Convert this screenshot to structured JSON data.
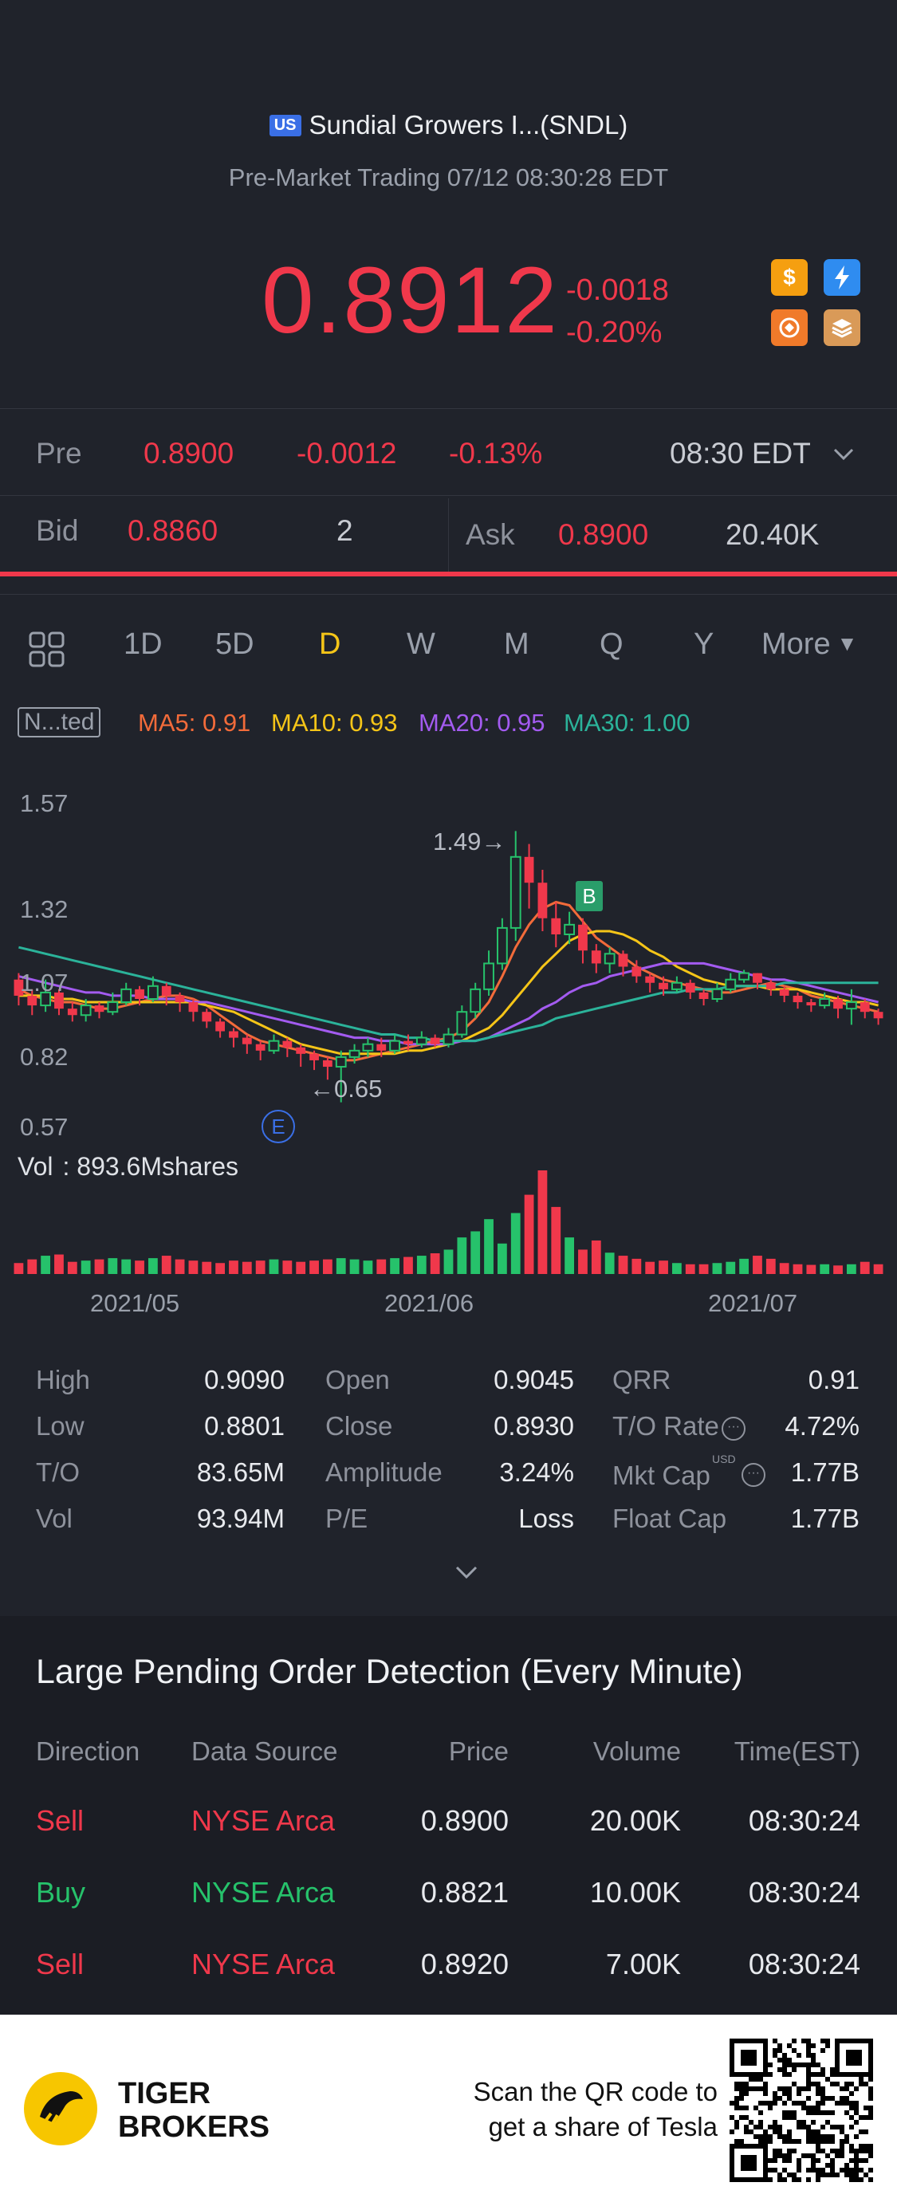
{
  "header": {
    "market_flag": "US",
    "title": "Sundial Growers I...(SNDL)",
    "subtitle": "Pre-Market Trading 07/12 08:30:28 EDT"
  },
  "quote": {
    "price": "0.8912",
    "change": "-0.0018",
    "change_pct": "-0.20%",
    "badges": [
      "dollar-icon",
      "lightning-icon",
      "share-icon",
      "stack-icon"
    ]
  },
  "pre": {
    "label": "Pre",
    "price": "0.8900",
    "change": "-0.0012",
    "change_pct": "-0.13%",
    "time": "08:30 EDT"
  },
  "bidask": {
    "bid_label": "Bid",
    "bid_price": "0.8860",
    "bid_size": "2",
    "ask_label": "Ask",
    "ask_price": "0.8900",
    "ask_size": "20.40K"
  },
  "tabs": {
    "items": [
      "1D",
      "5D",
      "D",
      "W",
      "M",
      "Q",
      "Y"
    ],
    "more": "More",
    "active": "D"
  },
  "ma": {
    "indicator": "N...ted",
    "ma5": "MA5: 0.91",
    "ma10": "MA10: 0.93",
    "ma20": "MA20: 0.95",
    "ma30": "MA30: 1.00",
    "colors": {
      "ma5": "#f26b3a",
      "ma10": "#f5c518",
      "ma20": "#a35bf0",
      "ma30": "#2bb39a"
    }
  },
  "chart": {
    "y_ticks": [
      "1.57",
      "1.32",
      "1.07",
      "0.82",
      "0.57"
    ],
    "high_annot": "1.49",
    "low_annot": "0.65",
    "b_marker": "B",
    "e_marker": "E",
    "vol_label": "Vol",
    "vol_value": ": 893.6Mshares",
    "x_ticks": [
      "2021/05",
      "2021/06",
      "2021/07"
    ]
  },
  "chart_data": {
    "type": "candlestick",
    "ylim": [
      0.57,
      1.57
    ],
    "candles": [
      {
        "o": 1.03,
        "c": 0.98,
        "h": 1.05,
        "l": 0.95
      },
      {
        "o": 0.98,
        "c": 0.95,
        "h": 1.0,
        "l": 0.92
      },
      {
        "o": 0.95,
        "c": 0.99,
        "h": 1.03,
        "l": 0.93
      },
      {
        "o": 0.99,
        "c": 0.94,
        "h": 1.0,
        "l": 0.92
      },
      {
        "o": 0.94,
        "c": 0.92,
        "h": 0.96,
        "l": 0.9
      },
      {
        "o": 0.92,
        "c": 0.95,
        "h": 0.97,
        "l": 0.9
      },
      {
        "o": 0.95,
        "c": 0.93,
        "h": 0.96,
        "l": 0.91
      },
      {
        "o": 0.93,
        "c": 0.96,
        "h": 0.99,
        "l": 0.92
      },
      {
        "o": 0.96,
        "c": 1.0,
        "h": 1.02,
        "l": 0.95
      },
      {
        "o": 1.0,
        "c": 0.97,
        "h": 1.01,
        "l": 0.95
      },
      {
        "o": 0.97,
        "c": 1.01,
        "h": 1.04,
        "l": 0.96
      },
      {
        "o": 1.01,
        "c": 0.98,
        "h": 1.02,
        "l": 0.95
      },
      {
        "o": 0.98,
        "c": 0.96,
        "h": 0.99,
        "l": 0.93
      },
      {
        "o": 0.96,
        "c": 0.93,
        "h": 0.97,
        "l": 0.9
      },
      {
        "o": 0.93,
        "c": 0.9,
        "h": 0.94,
        "l": 0.88
      },
      {
        "o": 0.9,
        "c": 0.87,
        "h": 0.91,
        "l": 0.85
      },
      {
        "o": 0.87,
        "c": 0.85,
        "h": 0.88,
        "l": 0.82
      },
      {
        "o": 0.85,
        "c": 0.83,
        "h": 0.86,
        "l": 0.8
      },
      {
        "o": 0.83,
        "c": 0.81,
        "h": 0.84,
        "l": 0.78
      },
      {
        "o": 0.81,
        "c": 0.84,
        "h": 0.86,
        "l": 0.8
      },
      {
        "o": 0.84,
        "c": 0.82,
        "h": 0.85,
        "l": 0.79
      },
      {
        "o": 0.82,
        "c": 0.8,
        "h": 0.83,
        "l": 0.76
      },
      {
        "o": 0.8,
        "c": 0.78,
        "h": 0.81,
        "l": 0.75
      },
      {
        "o": 0.78,
        "c": 0.76,
        "h": 0.79,
        "l": 0.72
      },
      {
        "o": 0.76,
        "c": 0.79,
        "h": 0.81,
        "l": 0.65
      },
      {
        "o": 0.79,
        "c": 0.81,
        "h": 0.83,
        "l": 0.77
      },
      {
        "o": 0.81,
        "c": 0.83,
        "h": 0.85,
        "l": 0.79
      },
      {
        "o": 0.83,
        "c": 0.81,
        "h": 0.85,
        "l": 0.79
      },
      {
        "o": 0.81,
        "c": 0.84,
        "h": 0.86,
        "l": 0.8
      },
      {
        "o": 0.84,
        "c": 0.83,
        "h": 0.86,
        "l": 0.81
      },
      {
        "o": 0.83,
        "c": 0.85,
        "h": 0.87,
        "l": 0.82
      },
      {
        "o": 0.85,
        "c": 0.83,
        "h": 0.86,
        "l": 0.82
      },
      {
        "o": 0.83,
        "c": 0.86,
        "h": 0.88,
        "l": 0.82
      },
      {
        "o": 0.86,
        "c": 0.93,
        "h": 0.95,
        "l": 0.85
      },
      {
        "o": 0.93,
        "c": 1.0,
        "h": 1.02,
        "l": 0.91
      },
      {
        "o": 1.0,
        "c": 1.08,
        "h": 1.12,
        "l": 0.98
      },
      {
        "o": 1.08,
        "c": 1.19,
        "h": 1.22,
        "l": 1.06
      },
      {
        "o": 1.19,
        "c": 1.41,
        "h": 1.49,
        "l": 1.15
      },
      {
        "o": 1.41,
        "c": 1.33,
        "h": 1.45,
        "l": 1.25
      },
      {
        "o": 1.33,
        "c": 1.22,
        "h": 1.37,
        "l": 1.18
      },
      {
        "o": 1.22,
        "c": 1.17,
        "h": 1.27,
        "l": 1.13
      },
      {
        "o": 1.17,
        "c": 1.2,
        "h": 1.24,
        "l": 1.14
      },
      {
        "o": 1.2,
        "c": 1.12,
        "h": 1.22,
        "l": 1.08
      },
      {
        "o": 1.12,
        "c": 1.08,
        "h": 1.14,
        "l": 1.05
      },
      {
        "o": 1.08,
        "c": 1.11,
        "h": 1.13,
        "l": 1.05
      },
      {
        "o": 1.11,
        "c": 1.07,
        "h": 1.12,
        "l": 1.04
      },
      {
        "o": 1.07,
        "c": 1.04,
        "h": 1.09,
        "l": 1.02
      },
      {
        "o": 1.04,
        "c": 1.02,
        "h": 1.05,
        "l": 0.99
      },
      {
        "o": 1.02,
        "c": 1.0,
        "h": 1.04,
        "l": 0.98
      },
      {
        "o": 1.0,
        "c": 1.02,
        "h": 1.04,
        "l": 0.99
      },
      {
        "o": 1.02,
        "c": 0.99,
        "h": 1.03,
        "l": 0.97
      },
      {
        "o": 0.99,
        "c": 0.97,
        "h": 1.0,
        "l": 0.95
      },
      {
        "o": 0.97,
        "c": 1.0,
        "h": 1.02,
        "l": 0.96
      },
      {
        "o": 1.0,
        "c": 1.03,
        "h": 1.05,
        "l": 0.99
      },
      {
        "o": 1.03,
        "c": 1.05,
        "h": 1.06,
        "l": 1.02
      },
      {
        "o": 1.05,
        "c": 1.02,
        "h": 1.05,
        "l": 1.0
      },
      {
        "o": 1.02,
        "c": 1.0,
        "h": 1.03,
        "l": 0.98
      },
      {
        "o": 1.0,
        "c": 0.98,
        "h": 1.01,
        "l": 0.96
      },
      {
        "o": 0.98,
        "c": 0.96,
        "h": 0.99,
        "l": 0.94
      },
      {
        "o": 0.96,
        "c": 0.95,
        "h": 0.97,
        "l": 0.93
      },
      {
        "o": 0.95,
        "c": 0.97,
        "h": 0.99,
        "l": 0.94
      },
      {
        "o": 0.97,
        "c": 0.94,
        "h": 0.98,
        "l": 0.91
      },
      {
        "o": 0.94,
        "c": 0.96,
        "h": 1.0,
        "l": 0.89
      },
      {
        "o": 0.96,
        "c": 0.93,
        "h": 0.97,
        "l": 0.91
      },
      {
        "o": 0.93,
        "c": 0.91,
        "h": 0.94,
        "l": 0.89
      }
    ],
    "ma_series": [
      {
        "name": "MA5",
        "values": [
          1.0,
          0.98,
          0.97,
          0.96,
          0.96,
          0.95,
          0.94,
          0.94,
          0.95,
          0.96,
          0.97,
          0.98,
          0.98,
          0.97,
          0.95,
          0.92,
          0.89,
          0.86,
          0.84,
          0.83,
          0.82,
          0.81,
          0.8,
          0.79,
          0.78,
          0.78,
          0.79,
          0.8,
          0.81,
          0.82,
          0.83,
          0.84,
          0.85,
          0.87,
          0.91,
          0.96,
          1.04,
          1.13,
          1.2,
          1.25,
          1.27,
          1.26,
          1.21,
          1.16,
          1.13,
          1.1,
          1.07,
          1.05,
          1.03,
          1.02,
          1.01,
          1.0,
          0.99,
          0.99,
          1.0,
          1.01,
          1.02,
          1.01,
          1.0,
          0.98,
          0.97,
          0.96,
          0.95,
          0.94,
          0.93
        ]
      },
      {
        "name": "MA10",
        "values": [
          0.98,
          0.98,
          0.98,
          0.97,
          0.97,
          0.96,
          0.96,
          0.96,
          0.96,
          0.96,
          0.96,
          0.96,
          0.96,
          0.96,
          0.95,
          0.94,
          0.93,
          0.91,
          0.89,
          0.87,
          0.85,
          0.83,
          0.82,
          0.81,
          0.8,
          0.8,
          0.8,
          0.8,
          0.8,
          0.81,
          0.81,
          0.82,
          0.83,
          0.84,
          0.86,
          0.88,
          0.92,
          0.97,
          1.02,
          1.07,
          1.11,
          1.15,
          1.17,
          1.18,
          1.18,
          1.17,
          1.15,
          1.12,
          1.1,
          1.07,
          1.05,
          1.03,
          1.02,
          1.01,
          1.01,
          1.01,
          1.0,
          1.0,
          1.0,
          0.99,
          0.98,
          0.97,
          0.96,
          0.96,
          0.95
        ]
      },
      {
        "name": "MA20",
        "values": [
          1.04,
          1.03,
          1.02,
          1.01,
          1.0,
          0.99,
          0.99,
          0.98,
          0.98,
          0.98,
          0.97,
          0.97,
          0.97,
          0.96,
          0.96,
          0.95,
          0.94,
          0.93,
          0.92,
          0.91,
          0.9,
          0.89,
          0.88,
          0.87,
          0.86,
          0.85,
          0.85,
          0.84,
          0.84,
          0.83,
          0.83,
          0.83,
          0.83,
          0.84,
          0.84,
          0.85,
          0.87,
          0.89,
          0.91,
          0.94,
          0.96,
          0.99,
          1.01,
          1.02,
          1.04,
          1.05,
          1.06,
          1.07,
          1.08,
          1.08,
          1.08,
          1.08,
          1.07,
          1.06,
          1.05,
          1.04,
          1.03,
          1.03,
          1.02,
          1.01,
          1.0,
          0.99,
          0.98,
          0.97,
          0.96
        ]
      },
      {
        "name": "MA30",
        "values": [
          1.13,
          1.12,
          1.11,
          1.1,
          1.09,
          1.08,
          1.07,
          1.06,
          1.05,
          1.04,
          1.03,
          1.02,
          1.01,
          1.0,
          0.99,
          0.98,
          0.97,
          0.96,
          0.95,
          0.94,
          0.93,
          0.92,
          0.91,
          0.9,
          0.89,
          0.88,
          0.87,
          0.86,
          0.86,
          0.85,
          0.85,
          0.84,
          0.84,
          0.84,
          0.84,
          0.85,
          0.86,
          0.87,
          0.88,
          0.89,
          0.91,
          0.92,
          0.93,
          0.94,
          0.95,
          0.96,
          0.97,
          0.98,
          0.99,
          0.99,
          1.0,
          1.0,
          1.0,
          1.01,
          1.01,
          1.01,
          1.01,
          1.02,
          1.02,
          1.02,
          1.02,
          1.02,
          1.02,
          1.02,
          1.02
        ]
      }
    ],
    "volumes": [
      18,
      24,
      30,
      32,
      20,
      22,
      24,
      26,
      24,
      22,
      26,
      30,
      24,
      22,
      20,
      18,
      22,
      20,
      22,
      24,
      22,
      20,
      22,
      24,
      26,
      24,
      22,
      24,
      26,
      28,
      30,
      34,
      40,
      60,
      70,
      90,
      50,
      100,
      130,
      170,
      110,
      60,
      40,
      55,
      35,
      30,
      25,
      20,
      22,
      18,
      16,
      16,
      18,
      20,
      25,
      30,
      25,
      18,
      16,
      15,
      16,
      14,
      16,
      20,
      16
    ]
  },
  "stats": {
    "col1": [
      {
        "label": "High",
        "value": "0.9090"
      },
      {
        "label": "Low",
        "value": "0.8801"
      },
      {
        "label": "T/O",
        "value": "83.65M"
      },
      {
        "label": "Vol",
        "value": "93.94M"
      }
    ],
    "col2": [
      {
        "label": "Open",
        "value": "0.9045"
      },
      {
        "label": "Close",
        "value": "0.8930"
      },
      {
        "label": "Amplitude",
        "value": "3.24%"
      },
      {
        "label": "P/E",
        "value": "Loss"
      }
    ],
    "col3": [
      {
        "label": "QRR",
        "value": "0.91"
      },
      {
        "label": "T/O Rate",
        "value": "4.72%"
      },
      {
        "label": "Mkt Cap",
        "value": "1.77B",
        "sup": "USD"
      },
      {
        "label": "Float Cap",
        "value": "1.77B"
      }
    ]
  },
  "pending": {
    "title": "Large Pending Order Detection (Every Minute)",
    "headers": [
      "Direction",
      "Data Source",
      "Price",
      "Volume",
      "Time(EST)"
    ],
    "rows": [
      {
        "direction": "Sell",
        "source": "NYSE Arca",
        "price": "0.8900",
        "volume": "20.00K",
        "time": "08:30:24",
        "side": "sell"
      },
      {
        "direction": "Buy",
        "source": "NYSE Arca",
        "price": "0.8821",
        "volume": "10.00K",
        "time": "08:30:24",
        "side": "buy"
      },
      {
        "direction": "Sell",
        "source": "NYSE Arca",
        "price": "0.8920",
        "volume": "7.00K",
        "time": "08:30:24",
        "side": "sell"
      }
    ]
  },
  "footer": {
    "brand_line1": "TIGER",
    "brand_line2": "BROKERS",
    "promo_line1": "Scan the QR code to",
    "promo_line2": "get a share of Tesla"
  }
}
